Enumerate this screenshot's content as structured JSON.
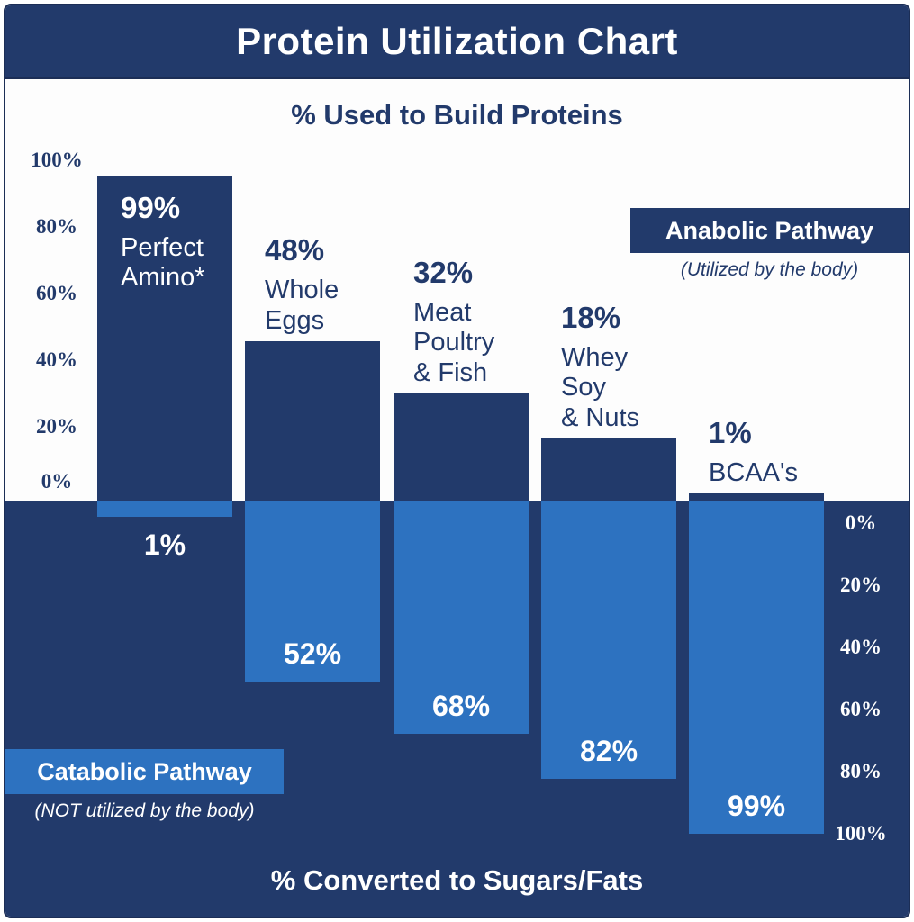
{
  "header": {
    "title": "Protein Utilization Chart"
  },
  "top_section": {
    "subtitle": "% Used to Build Proteins",
    "axis_ticks": [
      "100%",
      "80%",
      "60%",
      "40%",
      "20%",
      "0%"
    ],
    "legend": {
      "label": "Anabolic Pathway",
      "sublabel": "(Utilized by the body)"
    }
  },
  "bottom_section": {
    "subtitle": "% Converted to Sugars/Fats",
    "axis_ticks": [
      "0%",
      "20%",
      "40%",
      "60%",
      "80%",
      "100%"
    ],
    "legend": {
      "label": "Catabolic Pathway",
      "sublabel": "(NOT utilized by the body)"
    }
  },
  "chart_data": {
    "type": "bar",
    "title": "Protein Utilization Chart",
    "categories": [
      "Perfect Amino*",
      "Whole Eggs",
      "Meat Poultry & Fish",
      "Whey Soy & Nuts",
      "BCAA's"
    ],
    "category_label_lines": [
      [
        "Perfect",
        "Amino*"
      ],
      [
        "Whole",
        "Eggs"
      ],
      [
        "Meat",
        "Poultry",
        "& Fish"
      ],
      [
        "Whey",
        "Soy",
        "& Nuts"
      ],
      [
        "BCAA's"
      ]
    ],
    "series": [
      {
        "name": "% Used to Build Proteins (Anabolic Pathway)",
        "values": [
          99,
          48,
          32,
          18,
          1
        ]
      },
      {
        "name": "% Converted to Sugars/Fats (Catabolic Pathway)",
        "values": [
          1,
          52,
          68,
          82,
          99
        ]
      }
    ],
    "value_labels": {
      "anabolic": [
        "99%",
        "48%",
        "32%",
        "18%",
        "1%"
      ],
      "catabolic": [
        "1%",
        "52%",
        "68%",
        "82%",
        "99%"
      ]
    },
    "ylim": [
      0,
      100
    ],
    "grid": false,
    "colors": {
      "anabolic_bar": "#223a6b",
      "catabolic_bar": "#2d72c0",
      "top_background": "#fdfdfd",
      "bottom_background": "#223a6b",
      "text_dark": "#223a6b",
      "text_light": "#ffffff"
    }
  }
}
